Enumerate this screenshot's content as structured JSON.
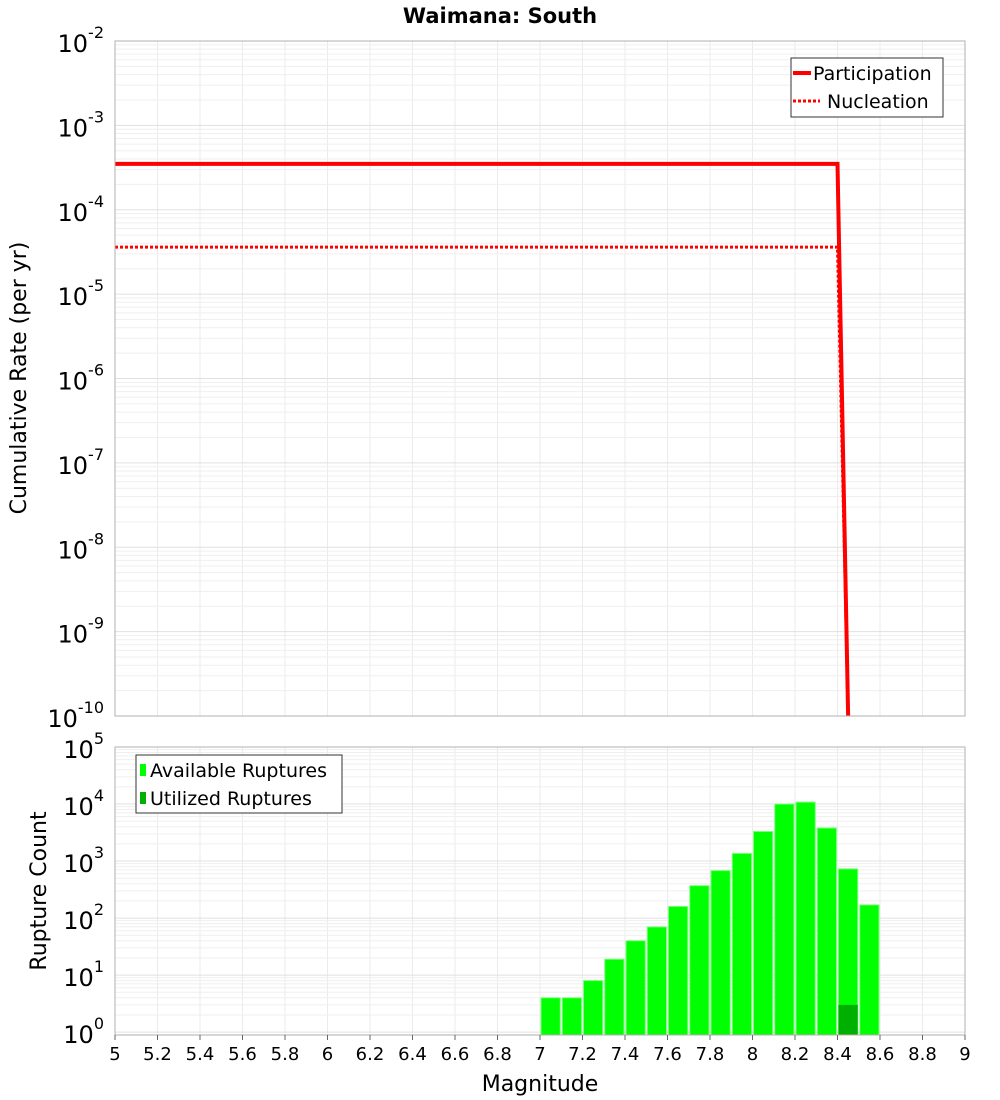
{
  "chart_data": [
    {
      "type": "line",
      "title": "Waimana: South",
      "xlabel": "",
      "ylabel": "Cumulative Rate (per yr)",
      "xlim": [
        5,
        9
      ],
      "ylim": [
        1e-10,
        0.01
      ],
      "yscale": "log",
      "grid": true,
      "x_ticks": [],
      "y_tick_exponents": [
        "-2",
        "-3",
        "-4",
        "-5",
        "-6",
        "-7",
        "-8",
        "-9",
        "-10"
      ],
      "legend_position": "top-right",
      "series": [
        {
          "name": "Participation",
          "color": "#ff0000",
          "style": "solid",
          "x": [
            5.0,
            8.4,
            8.45
          ],
          "y": [
            0.00035,
            0.00035,
            1e-10
          ]
        },
        {
          "name": "Nucleation",
          "color": "#ff0000",
          "style": "dotted",
          "x": [
            5.0,
            8.4,
            8.45
          ],
          "y": [
            3.6e-05,
            3.6e-05,
            1e-10
          ]
        }
      ]
    },
    {
      "type": "bar",
      "title": "",
      "xlabel": "Magnitude",
      "ylabel": "Rupture Count",
      "xlim": [
        5,
        9
      ],
      "ylim": [
        0.89,
        100000.0
      ],
      "yscale": "log",
      "grid": true,
      "bin_width": 0.1,
      "x_ticks": [
        "5",
        "5.2",
        "5.4",
        "5.6",
        "5.8",
        "6",
        "6.2",
        "6.4",
        "6.6",
        "6.8",
        "7",
        "7.2",
        "7.4",
        "7.6",
        "7.8",
        "8",
        "8.2",
        "8.4",
        "8.6",
        "8.8",
        "9"
      ],
      "y_tick_exponents": [
        "0",
        "1",
        "2",
        "3",
        "4",
        "5"
      ],
      "legend_position": "top-left",
      "series": [
        {
          "name": "Available Ruptures",
          "color": "#00ff00",
          "x": [
            7.0,
            7.1,
            7.2,
            7.3,
            7.4,
            7.5,
            7.6,
            7.7,
            7.8,
            7.9,
            8.0,
            8.1,
            8.2,
            8.3,
            8.4,
            8.5
          ],
          "values": [
            4,
            4,
            8,
            19,
            40,
            70,
            160,
            370,
            680,
            1360,
            3300,
            10000,
            10800,
            3800,
            730,
            170
          ]
        },
        {
          "name": "Utilized Ruptures",
          "color": "#00b000",
          "x": [
            8.4
          ],
          "values": [
            3
          ]
        }
      ]
    }
  ]
}
